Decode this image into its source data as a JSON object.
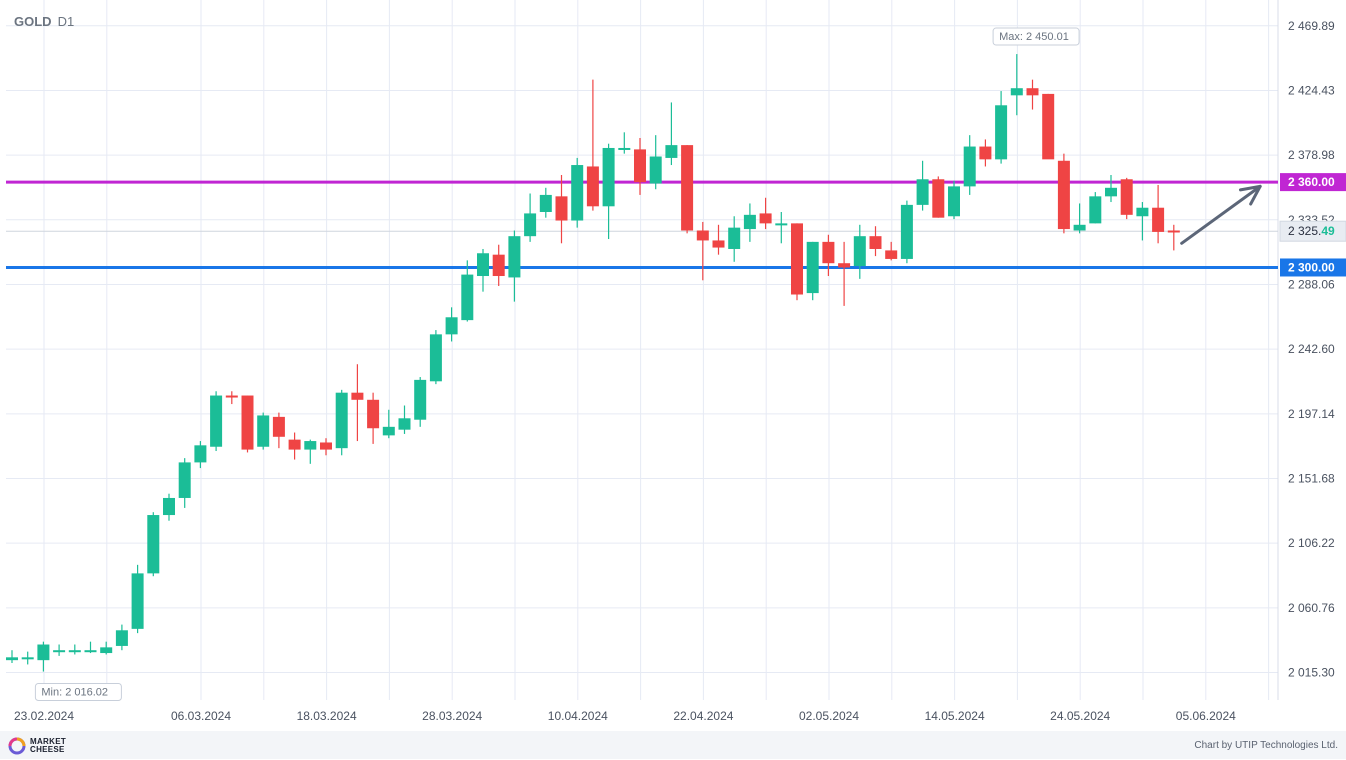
{
  "header": {
    "symbol": "GOLD",
    "timeframe": "D1"
  },
  "footer": {
    "credit": "Chart by UTIP Technologies Ltd.",
    "logo_line1": "MARKET",
    "logo_line2": "CHEESE"
  },
  "colors": {
    "up": "#1bbd97",
    "down": "#ef4444",
    "resistance": "#c026d3",
    "support": "#1976e8",
    "grid": "#e6eaf4",
    "current": "#e8ecf2"
  },
  "chart_data": {
    "type": "candlestick",
    "ylim": [
      1996,
      2488
    ],
    "y_ticks": [
      {
        "value": 2015.3,
        "label": "2 015.30"
      },
      {
        "value": 2060.76,
        "label": "2 060.76"
      },
      {
        "value": 2106.22,
        "label": "2 106.22"
      },
      {
        "value": 2151.68,
        "label": "2 151.68"
      },
      {
        "value": 2197.14,
        "label": "2 197.14"
      },
      {
        "value": 2242.6,
        "label": "2 242.60"
      },
      {
        "value": 2288.06,
        "label": "2 288.06"
      },
      {
        "value": 2333.52,
        "label": "2 333.52"
      },
      {
        "value": 2378.98,
        "label": "2 378.98"
      },
      {
        "value": 2424.43,
        "label": "2 424.43"
      },
      {
        "value": 2469.89,
        "label": "2 469.89"
      }
    ],
    "x_ticks": [
      {
        "index": 0,
        "label": "23.02.2024"
      },
      {
        "index": 10,
        "label": "06.03.2024"
      },
      {
        "index": 18,
        "label": "18.03.2024"
      },
      {
        "index": 26,
        "label": "28.03.2024"
      },
      {
        "index": 34,
        "label": "10.04.2024"
      },
      {
        "index": 42,
        "label": "22.04.2024"
      },
      {
        "index": 50,
        "label": "02.05.2024"
      },
      {
        "index": 58,
        "label": "14.05.2024"
      },
      {
        "index": 66,
        "label": "24.05.2024"
      },
      {
        "index": 74,
        "label": "05.06.2024"
      }
    ],
    "candles": [
      {
        "o": 2024,
        "h": 2031,
        "l": 2022,
        "c": 2026
      },
      {
        "o": 2025,
        "h": 2030,
        "l": 2021,
        "c": 2026
      },
      {
        "o": 2024,
        "h": 2037,
        "l": 2016,
        "c": 2035
      },
      {
        "o": 2031,
        "h": 2035,
        "l": 2027,
        "c": 2031
      },
      {
        "o": 2031,
        "h": 2035,
        "l": 2028,
        "c": 2031
      },
      {
        "o": 2031,
        "h": 2037,
        "l": 2029,
        "c": 2031
      },
      {
        "o": 2029,
        "h": 2037,
        "l": 2028,
        "c": 2033
      },
      {
        "o": 2034,
        "h": 2049,
        "l": 2031,
        "c": 2045
      },
      {
        "o": 2046,
        "h": 2091,
        "l": 2043,
        "c": 2085
      },
      {
        "o": 2085,
        "h": 2128,
        "l": 2083,
        "c": 2126
      },
      {
        "o": 2126,
        "h": 2141,
        "l": 2122,
        "c": 2138
      },
      {
        "o": 2138,
        "h": 2166,
        "l": 2131,
        "c": 2163
      },
      {
        "o": 2163,
        "h": 2178,
        "l": 2159,
        "c": 2175
      },
      {
        "o": 2174,
        "h": 2213,
        "l": 2171,
        "c": 2210
      },
      {
        "o": 2210,
        "h": 2213,
        "l": 2204,
        "c": 2209
      },
      {
        "o": 2210,
        "h": 2210,
        "l": 2170,
        "c": 2172
      },
      {
        "o": 2174,
        "h": 2198,
        "l": 2172,
        "c": 2196
      },
      {
        "o": 2195,
        "h": 2198,
        "l": 2173,
        "c": 2181
      },
      {
        "o": 2179,
        "h": 2184,
        "l": 2165,
        "c": 2172
      },
      {
        "o": 2172,
        "h": 2179,
        "l": 2162,
        "c": 2178
      },
      {
        "o": 2177,
        "h": 2180,
        "l": 2168,
        "c": 2172
      },
      {
        "o": 2173,
        "h": 2214,
        "l": 2168,
        "c": 2212
      },
      {
        "o": 2212,
        "h": 2232,
        "l": 2178,
        "c": 2207
      },
      {
        "o": 2207,
        "h": 2212,
        "l": 2176,
        "c": 2187
      },
      {
        "o": 2182,
        "h": 2200,
        "l": 2180,
        "c": 2188
      },
      {
        "o": 2186,
        "h": 2203,
        "l": 2183,
        "c": 2194
      },
      {
        "o": 2193,
        "h": 2223,
        "l": 2188,
        "c": 2221
      },
      {
        "o": 2220,
        "h": 2256,
        "l": 2218,
        "c": 2253
      },
      {
        "o": 2253,
        "h": 2272,
        "l": 2248,
        "c": 2265
      },
      {
        "o": 2263,
        "h": 2305,
        "l": 2262,
        "c": 2295
      },
      {
        "o": 2294,
        "h": 2313,
        "l": 2283,
        "c": 2310
      },
      {
        "o": 2309,
        "h": 2316,
        "l": 2287,
        "c": 2294
      },
      {
        "o": 2293,
        "h": 2326,
        "l": 2276,
        "c": 2322
      },
      {
        "o": 2322,
        "h": 2352,
        "l": 2318,
        "c": 2338
      },
      {
        "o": 2339,
        "h": 2356,
        "l": 2335,
        "c": 2351
      },
      {
        "o": 2350,
        "h": 2365,
        "l": 2317,
        "c": 2333
      },
      {
        "o": 2333,
        "h": 2377,
        "l": 2328,
        "c": 2372
      },
      {
        "o": 2371,
        "h": 2432,
        "l": 2340,
        "c": 2343
      },
      {
        "o": 2343,
        "h": 2387,
        "l": 2320,
        "c": 2384
      },
      {
        "o": 2383,
        "h": 2395,
        "l": 2380,
        "c": 2384
      },
      {
        "o": 2383,
        "h": 2391,
        "l": 2351,
        "c": 2360
      },
      {
        "o": 2359,
        "h": 2393,
        "l": 2355,
        "c": 2378
      },
      {
        "o": 2377,
        "h": 2416,
        "l": 2372,
        "c": 2386
      },
      {
        "o": 2386,
        "h": 2386,
        "l": 2324,
        "c": 2326
      },
      {
        "o": 2326,
        "h": 2332,
        "l": 2291,
        "c": 2319
      },
      {
        "o": 2319,
        "h": 2330,
        "l": 2309,
        "c": 2314
      },
      {
        "o": 2313,
        "h": 2336,
        "l": 2304,
        "c": 2328
      },
      {
        "o": 2327,
        "h": 2345,
        "l": 2318,
        "c": 2337
      },
      {
        "o": 2338,
        "h": 2349,
        "l": 2327,
        "c": 2331
      },
      {
        "o": 2331,
        "h": 2339,
        "l": 2317,
        "c": 2331
      },
      {
        "o": 2331,
        "h": 2331,
        "l": 2277,
        "c": 2281
      },
      {
        "o": 2282,
        "h": 2318,
        "l": 2277,
        "c": 2318
      },
      {
        "o": 2318,
        "h": 2323,
        "l": 2294,
        "c": 2303
      },
      {
        "o": 2303,
        "h": 2318,
        "l": 2273,
        "c": 2300
      },
      {
        "o": 2301,
        "h": 2330,
        "l": 2292,
        "c": 2322
      },
      {
        "o": 2322,
        "h": 2329,
        "l": 2308,
        "c": 2313
      },
      {
        "o": 2312,
        "h": 2318,
        "l": 2305,
        "c": 2306
      },
      {
        "o": 2306,
        "h": 2347,
        "l": 2303,
        "c": 2344
      },
      {
        "o": 2344,
        "h": 2375,
        "l": 2340,
        "c": 2362
      },
      {
        "o": 2362,
        "h": 2364,
        "l": 2335,
        "c": 2335
      },
      {
        "o": 2336,
        "h": 2361,
        "l": 2334,
        "c": 2357
      },
      {
        "o": 2357,
        "h": 2393,
        "l": 2351,
        "c": 2385
      },
      {
        "o": 2385,
        "h": 2390,
        "l": 2371,
        "c": 2376
      },
      {
        "o": 2376,
        "h": 2424,
        "l": 2373,
        "c": 2414
      },
      {
        "o": 2421,
        "h": 2450,
        "l": 2407,
        "c": 2426
      },
      {
        "o": 2426,
        "h": 2432,
        "l": 2411,
        "c": 2421
      },
      {
        "o": 2422,
        "h": 2422,
        "l": 2377,
        "c": 2376
      },
      {
        "o": 2375,
        "h": 2380,
        "l": 2324,
        "c": 2327
      },
      {
        "o": 2326,
        "h": 2345,
        "l": 2324,
        "c": 2330
      },
      {
        "o": 2331,
        "h": 2353,
        "l": 2331,
        "c": 2350
      },
      {
        "o": 2350,
        "h": 2365,
        "l": 2346,
        "c": 2356
      },
      {
        "o": 2362,
        "h": 2363,
        "l": 2334,
        "c": 2337
      },
      {
        "o": 2336,
        "h": 2346,
        "l": 2319,
        "c": 2342
      },
      {
        "o": 2342,
        "h": 2358,
        "l": 2317,
        "c": 2325
      },
      {
        "o": 2326,
        "h": 2330,
        "l": 2312,
        "c": 2325
      }
    ],
    "annotations": {
      "max": {
        "index": 63,
        "value": 2450.01,
        "label": "Max: 2 450.01"
      },
      "min": {
        "index": 2,
        "value": 2016.02,
        "label": "Min: 2 016.02"
      }
    },
    "levels": [
      {
        "name": "resistance",
        "value": 2360.0,
        "label": "2 360.00"
      },
      {
        "name": "support",
        "value": 2300.0,
        "label": "2 300.00"
      }
    ],
    "current_price": {
      "value": 2325.49,
      "label_main": "2 325.",
      "label_tail": "49"
    },
    "projection_arrow": {
      "from_index": 74.5,
      "from_value": 2317,
      "to_index": 79.5,
      "to_value": 2357
    }
  }
}
